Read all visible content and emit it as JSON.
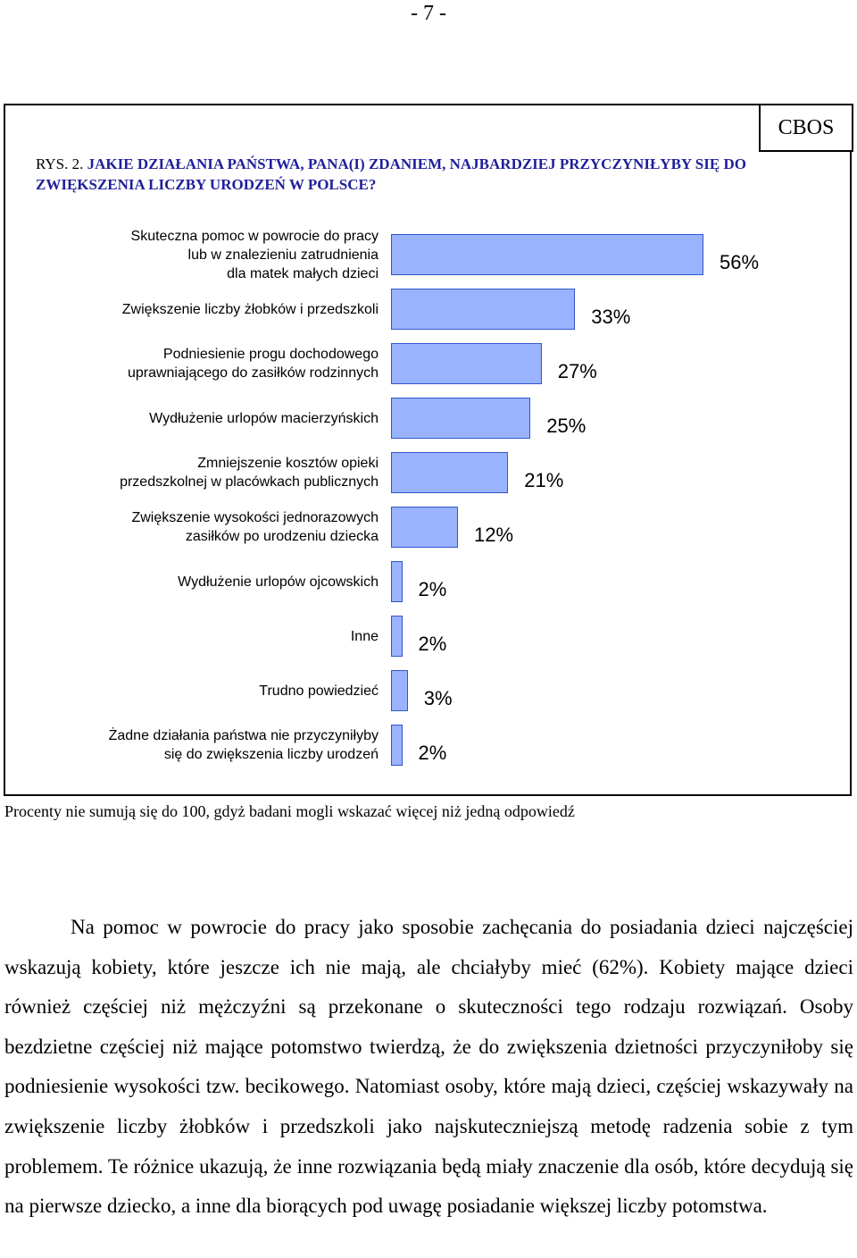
{
  "page": {
    "number": "- 7 -"
  },
  "figure": {
    "source_tab": "CBOS",
    "title_prefix": "RYS. 2. ",
    "title": "JAKIE DZIAŁANIA PAŃSTWA, PANA(I) ZDANIEM, NAJBARDZIEJ PRZYCZYNIŁYBY SIĘ DO ZWIĘKSZENIA LICZBY URODZEŃ W POLSCE?",
    "note": "Procenty nie sumują się do 100, gdyż badani mogli wskazać więcej niż jedną odpowiedź"
  },
  "chart_data": {
    "type": "bar",
    "orientation": "horizontal",
    "categories": [
      "Skuteczna pomoc w powrocie do pracy\nlub w znalezieniu zatrudnienia\ndla matek małych dzieci",
      "Zwiększenie liczby żłobków i przedszkoli",
      "Podniesienie progu dochodowego\nuprawniającego do zasiłków rodzinnych",
      "Wydłużenie urlopów macierzyńskich",
      "Zmniejszenie kosztów opieki\nprzedszkolnej w placówkach publicznych",
      "Zwiększenie wysokości jednorazowych\nzasiłków po urodzeniu dziecka",
      "Wydłużenie urlopów ojcowskich",
      "Inne",
      "Trudno powiedzieć",
      "Żadne działania państwa nie przyczyniłyby\nsię do zwiększenia liczby urodzeń"
    ],
    "values": [
      56,
      33,
      27,
      25,
      21,
      12,
      2,
      2,
      3,
      2
    ],
    "value_labels": [
      "56%",
      "33%",
      "27%",
      "25%",
      "21%",
      "12%",
      "2%",
      "2%",
      "3%",
      "2%"
    ],
    "unit": "%",
    "xlim": [
      0,
      63
    ],
    "grid": false,
    "legend": "none",
    "bar_color": "#99b3ff",
    "bar_edge_color": "#3355cc"
  },
  "body": {
    "paragraph": "Na pomoc w powrocie do pracy jako sposobie zachęcania do posiadania dzieci najczęściej wskazują kobiety, które jeszcze ich nie mają, ale chciałyby mieć (62%). Kobiety mające dzieci również częściej niż mężczyźni są przekonane o skuteczności tego rodzaju rozwiązań. Osoby bezdzietne częściej niż mające potomstwo twierdzą, że do zwiększenia dzietności przyczyniłoby się podniesienie wysokości tzw. becikowego. Natomiast osoby, które mają dzieci, częściej wskazywały na zwiększenie liczby żłobków i przedszkoli jako najskuteczniejszą metodę radzenia sobie z tym problemem. Te różnice ukazują, że inne rozwiązania będą miały znaczenie dla osób, które decydują się na pierwsze dziecko, a inne dla biorących pod uwagę posiadanie większej liczby potomstwa."
  }
}
